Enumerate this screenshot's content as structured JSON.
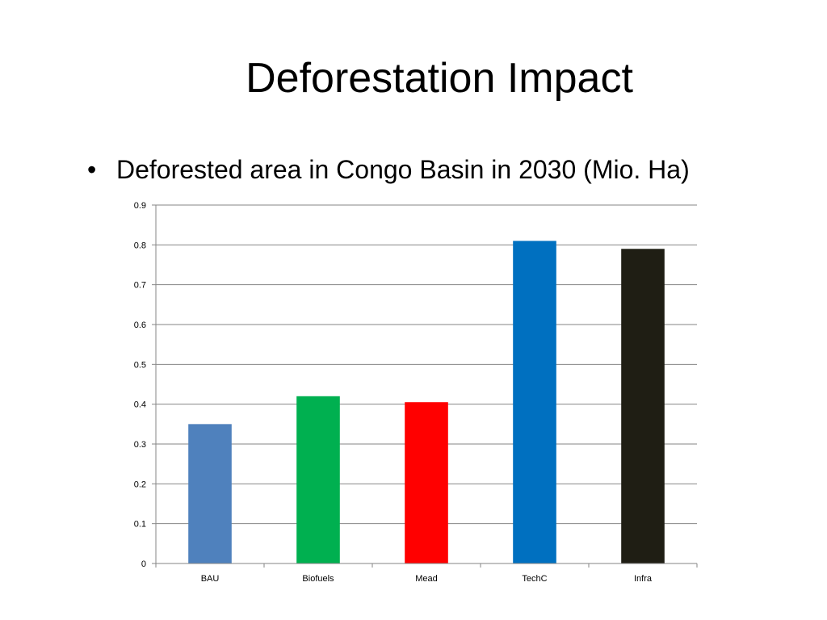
{
  "slide": {
    "title": "Deforestation Impact",
    "bullet_marker": "•",
    "bullet_text": "Deforested area in Congo Basin in 2030 (Mio. Ha)"
  },
  "chart_data": {
    "type": "bar",
    "categories": [
      "BAU",
      "Biofuels",
      "Mead",
      "TechC",
      "Infra"
    ],
    "values": [
      0.35,
      0.42,
      0.405,
      0.81,
      0.79
    ],
    "colors": [
      "#4F81BD",
      "#00B050",
      "#FF0000",
      "#0070C0",
      "#1F1E14"
    ],
    "ylim": [
      0,
      0.9
    ],
    "yticks": [
      0,
      0.1,
      0.2,
      0.3,
      0.4,
      0.5,
      0.6,
      0.7,
      0.8,
      0.9
    ],
    "ytick_labels": [
      "0",
      "0.1",
      "0.2",
      "0.3",
      "0.4",
      "0.5",
      "0.6",
      "0.7",
      "0.8",
      "0.9"
    ],
    "grid": true,
    "legend": "none"
  }
}
